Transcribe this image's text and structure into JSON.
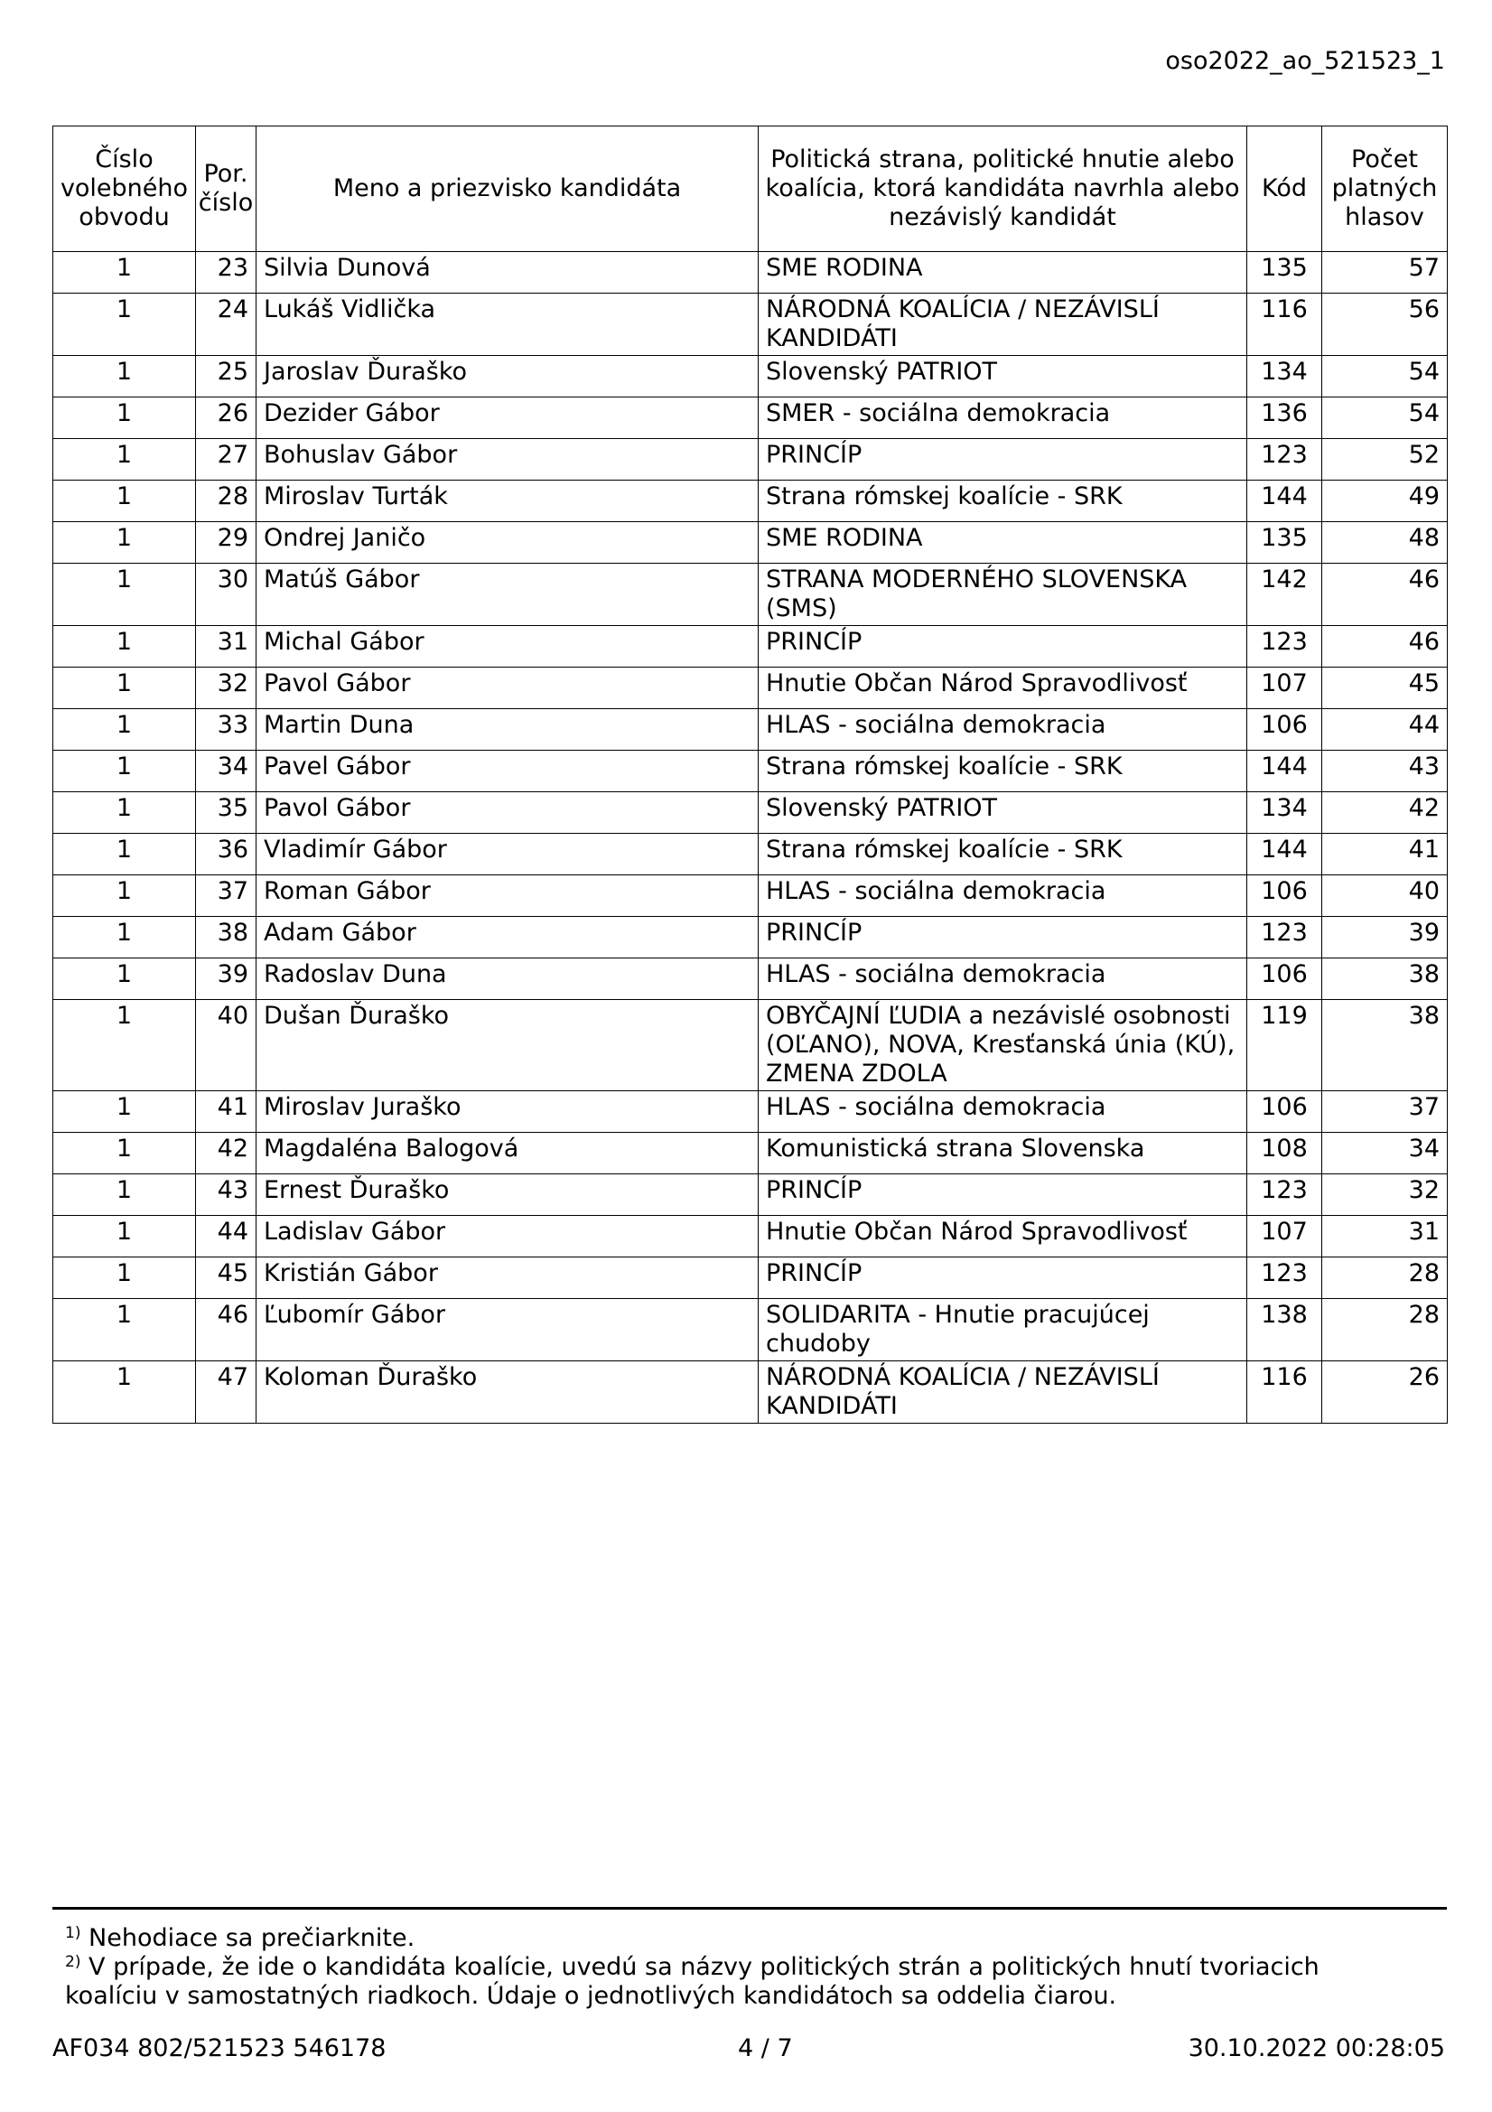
{
  "document_id": "oso2022_ao_521523_1",
  "table": {
    "headers": [
      "Číslo volebného obvodu",
      "Por. číslo",
      "Meno a priezvisko kandidáta",
      "Politická strana, politické hnutie alebo koalícia, ktorá kandidáta navrhla alebo nezávislý kandidát",
      "Kód",
      "Počet platných hlasov"
    ],
    "rows": [
      [
        "1",
        "23",
        "Silvia Dunová",
        "SME RODINA",
        "135",
        "57"
      ],
      [
        "1",
        "24",
        "Lukáš Vidlička",
        "NÁRODNÁ KOALÍCIA / NEZÁVISLÍ KANDIDÁTI",
        "116",
        "56"
      ],
      [
        "1",
        "25",
        "Jaroslav Ďuraško",
        "Slovenský PATRIOT",
        "134",
        "54"
      ],
      [
        "1",
        "26",
        "Dezider Gábor",
        "SMER - sociálna demokracia",
        "136",
        "54"
      ],
      [
        "1",
        "27",
        "Bohuslav Gábor",
        "PRINCÍP",
        "123",
        "52"
      ],
      [
        "1",
        "28",
        "Miroslav Turták",
        "Strana rómskej koalície - SRK",
        "144",
        "49"
      ],
      [
        "1",
        "29",
        "Ondrej Janičo",
        "SME RODINA",
        "135",
        "48"
      ],
      [
        "1",
        "30",
        "Matúš Gábor",
        "STRANA MODERNÉHO SLOVENSKA (SMS)",
        "142",
        "46"
      ],
      [
        "1",
        "31",
        "Michal Gábor",
        "PRINCÍP",
        "123",
        "46"
      ],
      [
        "1",
        "32",
        "Pavol Gábor",
        "Hnutie Občan Národ Spravodlivosť",
        "107",
        "45"
      ],
      [
        "1",
        "33",
        "Martin Duna",
        "HLAS - sociálna demokracia",
        "106",
        "44"
      ],
      [
        "1",
        "34",
        "Pavel Gábor",
        "Strana rómskej koalície - SRK",
        "144",
        "43"
      ],
      [
        "1",
        "35",
        "Pavol Gábor",
        "Slovenský PATRIOT",
        "134",
        "42"
      ],
      [
        "1",
        "36",
        "Vladimír Gábor",
        "Strana rómskej koalície - SRK",
        "144",
        "41"
      ],
      [
        "1",
        "37",
        "Roman Gábor",
        "HLAS - sociálna demokracia",
        "106",
        "40"
      ],
      [
        "1",
        "38",
        "Adam Gábor",
        "PRINCÍP",
        "123",
        "39"
      ],
      [
        "1",
        "39",
        "Radoslav Duna",
        "HLAS - sociálna demokracia",
        "106",
        "38"
      ],
      [
        "1",
        "40",
        "Dušan Ďuraško",
        "OBYČAJNÍ ĽUDIA a nezávislé osobnosti (OĽANO), NOVA, Kresťanská únia (KÚ), ZMENA ZDOLA",
        "119",
        "38"
      ],
      [
        "1",
        "41",
        "Miroslav Juraško",
        "HLAS - sociálna demokracia",
        "106",
        "37"
      ],
      [
        "1",
        "42",
        "Magdaléna Balogová",
        "Komunistická strana Slovenska",
        "108",
        "34"
      ],
      [
        "1",
        "43",
        "Ernest Ďuraško",
        "PRINCÍP",
        "123",
        "32"
      ],
      [
        "1",
        "44",
        "Ladislav Gábor",
        "Hnutie Občan Národ Spravodlivosť",
        "107",
        "31"
      ],
      [
        "1",
        "45",
        "Kristián Gábor",
        "PRINCÍP",
        "123",
        "28"
      ],
      [
        "1",
        "46",
        "Ľubomír Gábor",
        "SOLIDARITA - Hnutie pracujúcej chudoby",
        "138",
        "28"
      ],
      [
        "1",
        "47",
        "Koloman Ďuraško",
        "NÁRODNÁ KOALÍCIA / NEZÁVISLÍ KANDIDÁTI",
        "116",
        "26"
      ]
    ]
  },
  "footnotes": [
    {
      "mark": "1)",
      "text": "Nehodiace sa prečiarknite."
    },
    {
      "mark": "2)",
      "text": "V prípade, že ide o kandidáta koalície, uvedú sa názvy politických strán a politických hnutí tvoriacich koalíciu v samostatných riadkoch. Údaje o jednotlivých kandidátoch sa oddelia čiarou."
    }
  ],
  "footer": {
    "left": "AF034 802/521523 546178",
    "center": "4 / 7",
    "right": "30.10.2022 00:28:05"
  }
}
